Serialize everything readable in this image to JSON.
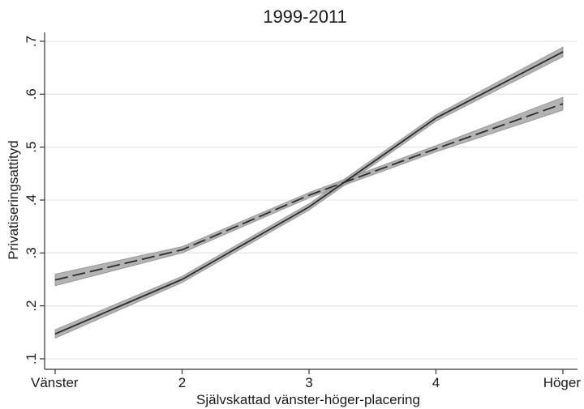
{
  "chart_data": {
    "type": "line",
    "title": "1999-2011",
    "xlabel": "Självskattad vänster-höger-placering",
    "ylabel": "Privatiseringsattityd",
    "x": [
      1,
      2,
      3,
      4,
      5
    ],
    "x_tick_labels": [
      "Vänster",
      "2",
      "3",
      "4",
      "Höger"
    ],
    "y_ticks": [
      0.1,
      0.2,
      0.3,
      0.4,
      0.5,
      0.6,
      0.7
    ],
    "y_tick_labels": [
      ".1",
      ".2",
      ".3",
      ".4",
      ".5",
      ".6",
      ".7"
    ],
    "xlim": [
      1,
      5
    ],
    "ylim": [
      0.1,
      0.7
    ],
    "grid": true,
    "series": [
      {
        "style": "solid",
        "values": [
          0.147,
          0.25,
          0.387,
          0.555,
          0.68
        ],
        "ci_lower": [
          0.139,
          0.244,
          0.381,
          0.549,
          0.671
        ],
        "ci_upper": [
          0.155,
          0.256,
          0.393,
          0.561,
          0.689
        ]
      },
      {
        "style": "dashed",
        "values": [
          0.249,
          0.306,
          0.409,
          0.497,
          0.582
        ],
        "ci_lower": [
          0.238,
          0.3,
          0.404,
          0.491,
          0.57
        ],
        "ci_upper": [
          0.26,
          0.312,
          0.414,
          0.503,
          0.594
        ]
      }
    ],
    "colors": {
      "line": "#2b2b2b",
      "ci_band": "#a6a6a6",
      "grid": "#e6e6e6",
      "axis": "#333333"
    }
  }
}
